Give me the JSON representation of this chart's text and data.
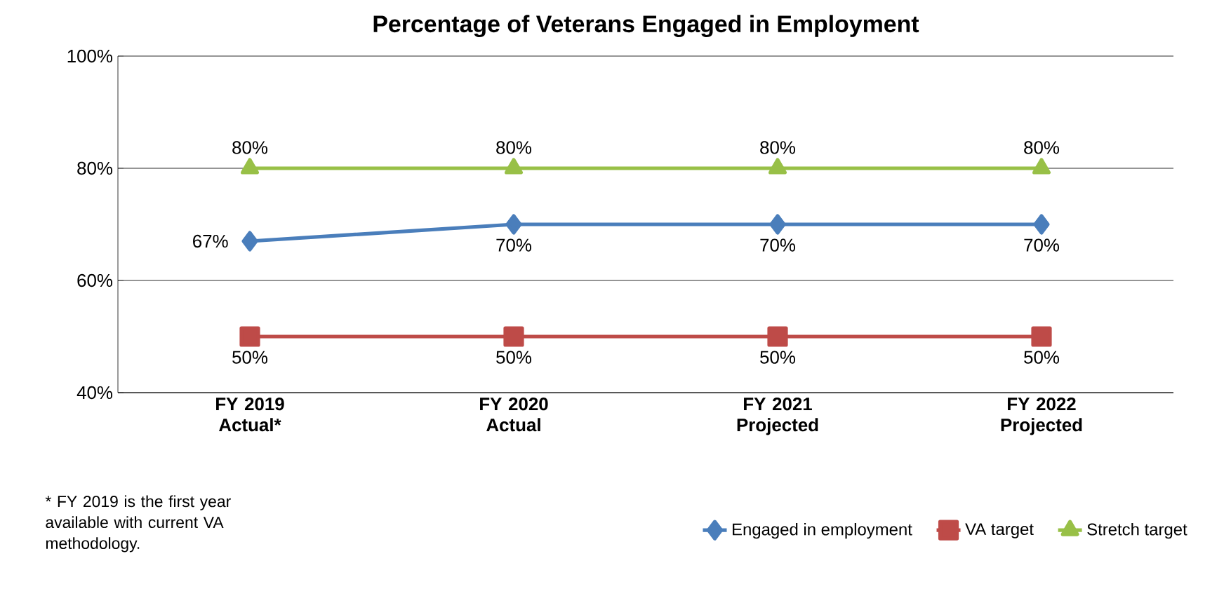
{
  "chart_data": {
    "type": "line",
    "title": "Percentage of Veterans Engaged in Employment",
    "categories": [
      "FY 2019 Actual*",
      "FY 2020 Actual",
      "FY 2021 Projected",
      "FY 2022 Projected"
    ],
    "series": [
      {
        "name": "Engaged in employment",
        "color": "#4a7ebb",
        "marker": "diamond",
        "values": [
          67,
          70,
          70,
          70
        ],
        "value_labels": [
          "67%",
          "70%",
          "70%",
          "70%"
        ]
      },
      {
        "name": "VA target",
        "color": "#be4b48",
        "marker": "square",
        "values": [
          50,
          50,
          50,
          50
        ],
        "value_labels": [
          "50%",
          "50%",
          "50%",
          "50%"
        ]
      },
      {
        "name": "Stretch target",
        "color": "#98c047",
        "marker": "triangle",
        "values": [
          80,
          80,
          80,
          80
        ],
        "value_labels": [
          "80%",
          "80%",
          "80%",
          "80%"
        ]
      }
    ],
    "ylim": [
      40,
      100
    ],
    "yticks": [
      {
        "value": 40,
        "label": "40%"
      },
      {
        "value": 60,
        "label": "60%"
      },
      {
        "value": 80,
        "label": "80%"
      },
      {
        "value": 100,
        "label": "100%"
      }
    ],
    "grid": "y",
    "legend": "bottom right",
    "line_style": "solid",
    "annotations": [
      "* FY 2019 is the first year available with current VA methodology."
    ]
  }
}
